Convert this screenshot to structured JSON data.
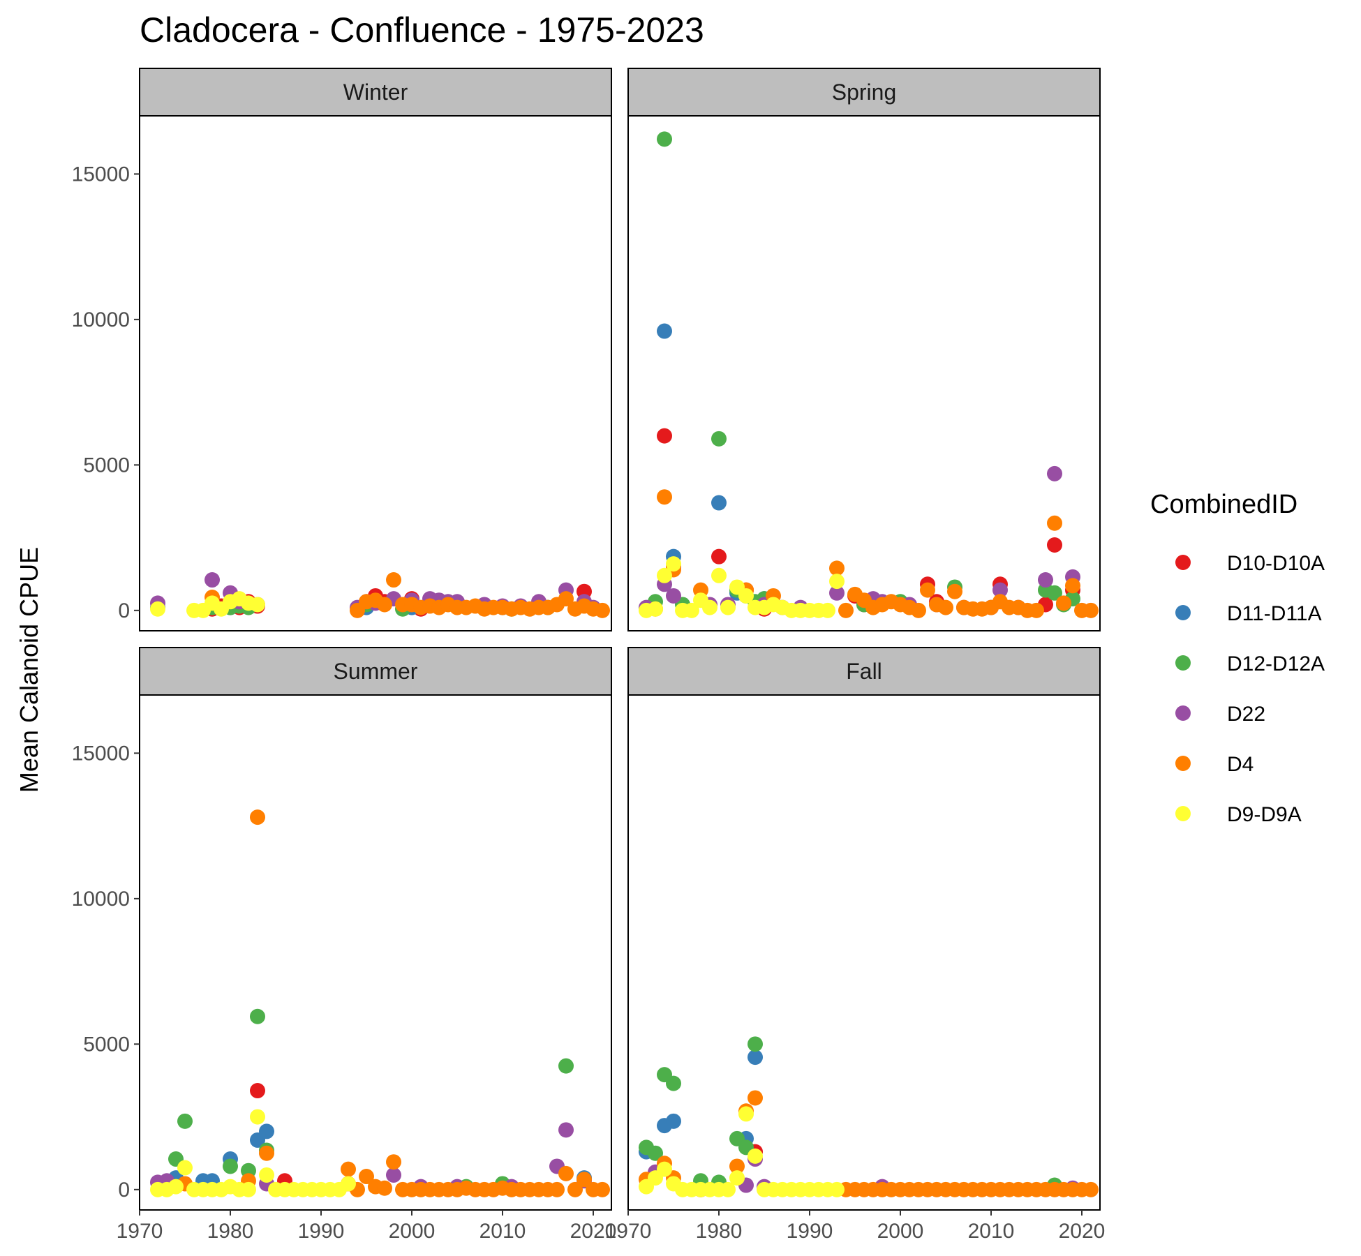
{
  "chart_data": {
    "type": "scatter",
    "title": "Cladocera - Confluence - 1975-2023",
    "xlabel": "",
    "ylabel": "Mean Calanoid CPUE",
    "xlim": [
      1970,
      2022
    ],
    "ylim": [
      -700,
      17000
    ],
    "x_ticks": [
      1970,
      1980,
      1990,
      2000,
      2010,
      2020
    ],
    "y_ticks": [
      0,
      5000,
      10000,
      15000
    ],
    "grid": false,
    "legend": {
      "title": "CombinedID",
      "position": "right",
      "entries": [
        {
          "name": "D10-D10A",
          "color": "#e41a1c"
        },
        {
          "name": "D11-D11A",
          "color": "#377eb8"
        },
        {
          "name": "D12-D12A",
          "color": "#4daf4a"
        },
        {
          "name": "D22",
          "color": "#984ea3"
        },
        {
          "name": "D4",
          "color": "#ff7f00"
        },
        {
          "name": "D9-D9A",
          "color": "#ffff33"
        }
      ]
    },
    "panels": [
      {
        "label": "Winter",
        "series": [
          {
            "name": "D10-D10A",
            "x": [
              1978,
              1979,
              1981,
              1982,
              1983,
              1996,
              1997,
              2000,
              2001,
              2005,
              2019
            ],
            "y": [
              50,
              150,
              100,
              300,
              150,
              500,
              300,
              400,
              50,
              150,
              650
            ]
          },
          {
            "name": "D11-D11A",
            "x": [
              1972,
              1978,
              1980,
              1995,
              2000,
              2010
            ],
            "y": [
              100,
              200,
              100,
              100,
              100,
              100
            ]
          },
          {
            "name": "D12-D12A",
            "x": [
              1978,
              1980,
              1981,
              1982,
              1995,
              1999,
              2003,
              2011,
              2015
            ],
            "y": [
              100,
              100,
              150,
              100,
              200,
              50,
              150,
              50,
              100
            ]
          },
          {
            "name": "D22",
            "x": [
              1972,
              1978,
              1980,
              1981,
              1983,
              1994,
              1995,
              1996,
              1998,
              2000,
              2002,
              2003,
              2004,
              2005,
              2008,
              2010,
              2012,
              2014,
              2017,
              2019,
              2020
            ],
            "y": [
              250,
              1050,
              600,
              300,
              200,
              100,
              300,
              250,
              400,
              350,
              400,
              350,
              300,
              300,
              200,
              150,
              150,
              300,
              700,
              300,
              100
            ]
          },
          {
            "name": "D4",
            "x": [
              1978,
              1994,
              1995,
              1996,
              1997,
              1998,
              1999,
              2000,
              2001,
              2002,
              2003,
              2004,
              2005,
              2006,
              2007,
              2008,
              2009,
              2010,
              2011,
              2012,
              2013,
              2014,
              2015,
              2016,
              2017,
              2018,
              2019,
              2020,
              2021
            ],
            "y": [
              450,
              0,
              300,
              350,
              200,
              1050,
              200,
              200,
              100,
              150,
              100,
              200,
              100,
              100,
              150,
              50,
              100,
              100,
              50,
              100,
              50,
              100,
              100,
              200,
              400,
              50,
              150,
              50,
              0
            ]
          },
          {
            "name": "D9-D9A",
            "x": [
              1972,
              1976,
              1977,
              1978,
              1979,
              1980,
              1981,
              1982,
              1983
            ],
            "y": [
              50,
              0,
              0,
              250,
              50,
              300,
              400,
              250,
              200
            ]
          }
        ]
      },
      {
        "label": "Spring",
        "series": [
          {
            "name": "D10-D10A",
            "x": [
              1974,
              1975,
              1980,
              1983,
              1985,
              1995,
              1996,
              2003,
              2004,
              2011,
              2016,
              2017,
              2019
            ],
            "y": [
              6000,
              1500,
              1850,
              700,
              50,
              500,
              200,
              900,
              300,
              900,
              200,
              2250,
              700
            ]
          },
          {
            "name": "D11-D11A",
            "x": [
              1974,
              1975,
              1980,
              1982,
              1985
            ],
            "y": [
              9600,
              1850,
              3700,
              600,
              400
            ]
          },
          {
            "name": "D12-D12A",
            "x": [
              1973,
              1974,
              1976,
              1980,
              1982,
              1983,
              1984,
              1985,
              1996,
              2000,
              2006,
              2016,
              2017,
              2018,
              2019
            ],
            "y": [
              300,
              16200,
              200,
              5900,
              700,
              500,
              300,
              400,
              200,
              300,
              800,
              700,
              600,
              200,
              400
            ]
          },
          {
            "name": "D22",
            "x": [
              1972,
              1974,
              1975,
              1979,
              1981,
              1985,
              1987,
              1989,
              1993,
              1997,
              1998,
              2001,
              2004,
              2007,
              2010,
              2011,
              2013,
              2016,
              2017,
              2019
            ],
            "y": [
              100,
              900,
              500,
              200,
              200,
              200,
              100,
              100,
              600,
              400,
              300,
              200,
              200,
              100,
              100,
              700,
              100,
              1050,
              4700,
              1150
            ]
          },
          {
            "name": "D4",
            "x": [
              1973,
              1974,
              1975,
              1978,
              1983,
              1986,
              1993,
              1994,
              1995,
              1996,
              1997,
              1998,
              1999,
              2000,
              2001,
              2002,
              2003,
              2004,
              2005,
              2006,
              2007,
              2008,
              2009,
              2010,
              2011,
              2012,
              2013,
              2014,
              2015,
              2017,
              2018,
              2019,
              2020,
              2021
            ],
            "y": [
              50,
              3900,
              1400,
              700,
              700,
              500,
              1450,
              0,
              550,
              350,
              100,
              200,
              300,
              200,
              100,
              0,
              700,
              200,
              100,
              650,
              100,
              50,
              50,
              100,
              300,
              100,
              100,
              0,
              0,
              3000,
              250,
              850,
              0,
              0
            ]
          },
          {
            "name": "D9-D9A",
            "x": [
              1972,
              1973,
              1974,
              1975,
              1976,
              1977,
              1978,
              1979,
              1980,
              1981,
              1982,
              1983,
              1984,
              1985,
              1986,
              1987,
              1988,
              1989,
              1990,
              1991,
              1992,
              1993
            ],
            "y": [
              0,
              50,
              1200,
              1600,
              0,
              0,
              350,
              100,
              1200,
              100,
              800,
              500,
              100,
              100,
              200,
              100,
              0,
              0,
              0,
              0,
              0,
              1000
            ]
          }
        ]
      },
      {
        "label": "Summer",
        "series": [
          {
            "name": "D10-D10A",
            "x": [
              1983,
              1986,
              1993
            ],
            "y": [
              3400,
              300,
              200
            ]
          },
          {
            "name": "D11-D11A",
            "x": [
              1974,
              1977,
              1978,
              1980,
              1983,
              1984,
              2019
            ],
            "y": [
              400,
              300,
              300,
              1050,
              1700,
              2000,
              400
            ]
          },
          {
            "name": "D12-D12A",
            "x": [
              1974,
              1975,
              1980,
              1982,
              1983,
              1984,
              2006,
              2010,
              2017
            ],
            "y": [
              1050,
              2350,
              800,
              650,
              5950,
              1350,
              100,
              200,
              4250
            ]
          },
          {
            "name": "D22",
            "x": [
              1972,
              1973,
              1984,
              1998,
              2001,
              2005,
              2011,
              2016,
              2017,
              2019
            ],
            "y": [
              250,
              300,
              200,
              500,
              100,
              100,
              100,
              800,
              2050,
              300
            ]
          },
          {
            "name": "D4",
            "x": [
              1975,
              1982,
              1983,
              1984,
              1993,
              1994,
              1995,
              1996,
              1997,
              1998,
              1999,
              2000,
              2001,
              2002,
              2003,
              2004,
              2005,
              2006,
              2007,
              2008,
              2009,
              2010,
              2011,
              2012,
              2013,
              2014,
              2015,
              2016,
              2017,
              2018,
              2019,
              2020,
              2021
            ],
            "y": [
              200,
              300,
              12800,
              1250,
              700,
              0,
              450,
              100,
              50,
              950,
              0,
              0,
              0,
              0,
              0,
              0,
              0,
              50,
              0,
              0,
              0,
              50,
              0,
              0,
              0,
              0,
              0,
              0,
              550,
              0,
              350,
              0,
              0
            ]
          },
          {
            "name": "D9-D9A",
            "x": [
              1972,
              1973,
              1974,
              1975,
              1976,
              1977,
              1978,
              1979,
              1980,
              1981,
              1982,
              1983,
              1984,
              1985,
              1986,
              1987,
              1988,
              1989,
              1990,
              1991,
              1992,
              1993
            ],
            "y": [
              0,
              0,
              100,
              750,
              0,
              0,
              0,
              0,
              100,
              0,
              0,
              2500,
              500,
              0,
              0,
              0,
              0,
              0,
              0,
              0,
              0,
              200
            ]
          }
        ]
      },
      {
        "label": "Fall",
        "series": [
          {
            "name": "D10-D10A",
            "x": [
              1978,
              1984
            ],
            "y": [
              0,
              1300
            ]
          },
          {
            "name": "D11-D11A",
            "x": [
              1972,
              1974,
              1975,
              1983,
              1984
            ],
            "y": [
              1300,
              2200,
              2350,
              1750,
              4550
            ]
          },
          {
            "name": "D12-D12A",
            "x": [
              1972,
              1973,
              1974,
              1975,
              1978,
              1980,
              1982,
              1983,
              1984,
              2017
            ],
            "y": [
              1450,
              1250,
              3950,
              3650,
              300,
              250,
              1750,
              1450,
              5000,
              150
            ]
          },
          {
            "name": "D22",
            "x": [
              1973,
              1983,
              1984,
              1985,
              1998,
              2019
            ],
            "y": [
              600,
              150,
              1050,
              100,
              100,
              50
            ]
          },
          {
            "name": "D4",
            "x": [
              1972,
              1974,
              1975,
              1982,
              1983,
              1984,
              1994,
              1995,
              1996,
              1997,
              1998,
              1999,
              2000,
              2001,
              2002,
              2003,
              2004,
              2005,
              2006,
              2007,
              2008,
              2009,
              2010,
              2011,
              2012,
              2013,
              2014,
              2015,
              2016,
              2017,
              2018,
              2019,
              2020,
              2021
            ],
            "y": [
              350,
              900,
              400,
              800,
              2700,
              3150,
              0,
              0,
              0,
              0,
              0,
              0,
              0,
              0,
              0,
              0,
              0,
              0,
              0,
              0,
              0,
              0,
              0,
              0,
              0,
              0,
              0,
              0,
              0,
              0,
              0,
              0,
              0,
              0
            ]
          },
          {
            "name": "D9-D9A",
            "x": [
              1972,
              1973,
              1974,
              1975,
              1976,
              1977,
              1978,
              1979,
              1980,
              1981,
              1982,
              1983,
              1984,
              1985,
              1986,
              1987,
              1988,
              1989,
              1990,
              1991,
              1992,
              1993
            ],
            "y": [
              100,
              400,
              700,
              200,
              0,
              0,
              0,
              0,
              0,
              0,
              400,
              2600,
              1150,
              0,
              0,
              0,
              0,
              0,
              0,
              0,
              0,
              0
            ]
          }
        ]
      }
    ]
  }
}
